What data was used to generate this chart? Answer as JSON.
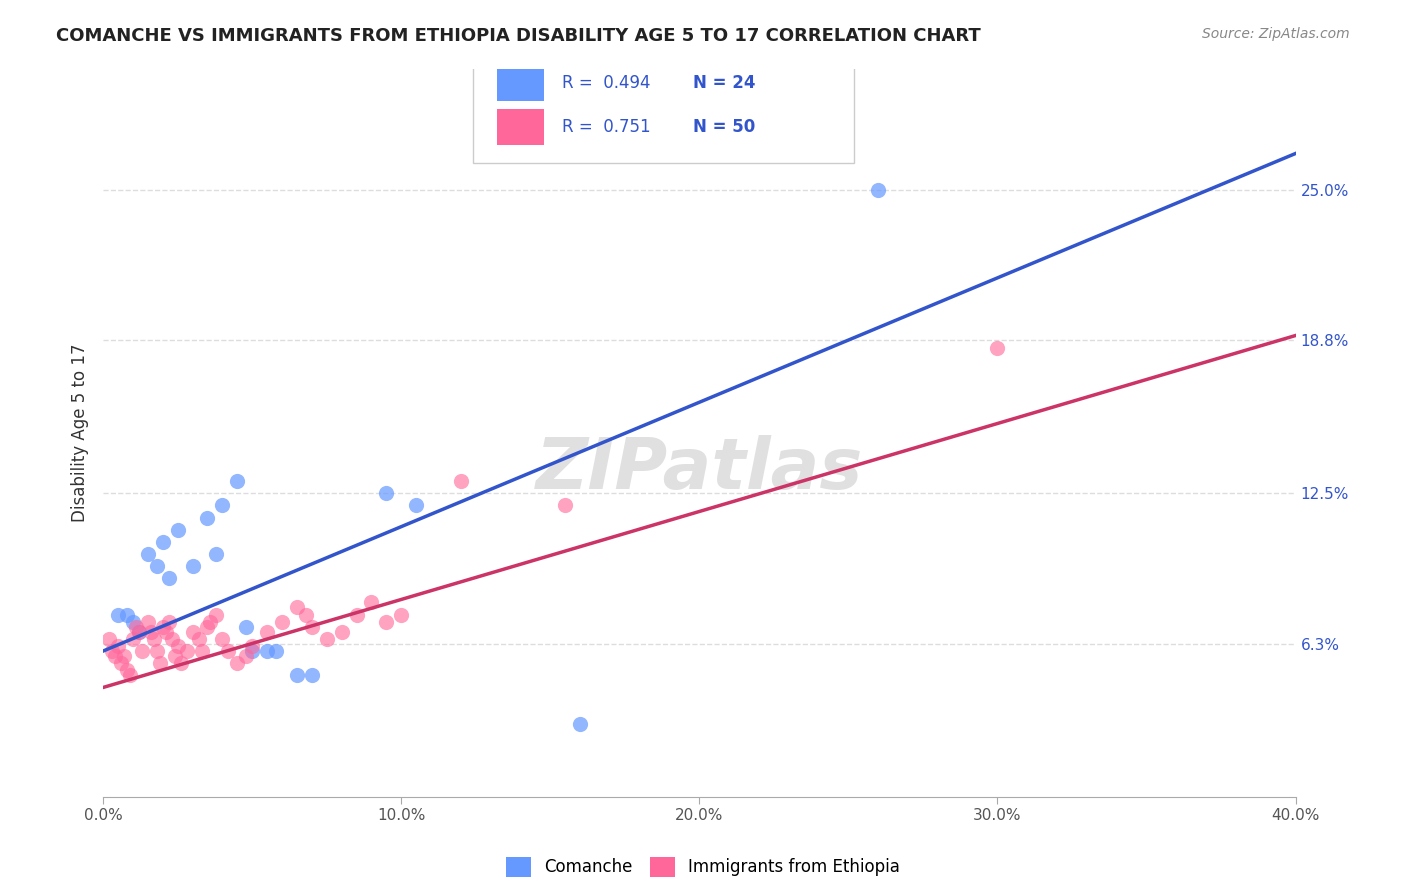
{
  "title": "COMANCHE VS IMMIGRANTS FROM ETHIOPIA DISABILITY AGE 5 TO 17 CORRELATION CHART",
  "source": "Source: ZipAtlas.com",
  "xlabel_label": "",
  "ylabel_label": "Disability Age 5 to 17",
  "x_min": 0.0,
  "x_max": 0.4,
  "y_min": 0.0,
  "y_max": 0.3,
  "x_ticks": [
    0.0,
    0.1,
    0.2,
    0.3,
    0.4
  ],
  "x_tick_labels": [
    "0.0%",
    "10.0%",
    "20.0%",
    "30.0%",
    "40.0%"
  ],
  "y_tick_labels_right": [
    "6.3%",
    "12.5%",
    "18.8%",
    "25.0%"
  ],
  "y_tick_vals_right": [
    0.063,
    0.125,
    0.188,
    0.25
  ],
  "grid_color": "#dddddd",
  "watermark": "ZIPatlas",
  "legend_R1": "0.494",
  "legend_N1": "24",
  "legend_R2": "0.751",
  "legend_N2": "50",
  "blue_color": "#6699ff",
  "pink_color": "#ff6699",
  "blue_line_color": "#3355cc",
  "pink_line_color": "#cc3366",
  "blue_scatter": [
    [
      0.005,
      0.075
    ],
    [
      0.008,
      0.075
    ],
    [
      0.01,
      0.072
    ],
    [
      0.012,
      0.068
    ],
    [
      0.015,
      0.1
    ],
    [
      0.018,
      0.095
    ],
    [
      0.02,
      0.105
    ],
    [
      0.022,
      0.09
    ],
    [
      0.025,
      0.11
    ],
    [
      0.03,
      0.095
    ],
    [
      0.035,
      0.115
    ],
    [
      0.038,
      0.1
    ],
    [
      0.04,
      0.12
    ],
    [
      0.045,
      0.13
    ],
    [
      0.048,
      0.07
    ],
    [
      0.05,
      0.06
    ],
    [
      0.055,
      0.06
    ],
    [
      0.058,
      0.06
    ],
    [
      0.065,
      0.05
    ],
    [
      0.07,
      0.05
    ],
    [
      0.095,
      0.125
    ],
    [
      0.105,
      0.12
    ],
    [
      0.16,
      0.03
    ],
    [
      0.26,
      0.25
    ]
  ],
  "pink_scatter": [
    [
      0.002,
      0.065
    ],
    [
      0.003,
      0.06
    ],
    [
      0.004,
      0.058
    ],
    [
      0.005,
      0.062
    ],
    [
      0.006,
      0.055
    ],
    [
      0.007,
      0.058
    ],
    [
      0.008,
      0.052
    ],
    [
      0.009,
      0.05
    ],
    [
      0.01,
      0.065
    ],
    [
      0.011,
      0.07
    ],
    [
      0.012,
      0.068
    ],
    [
      0.013,
      0.06
    ],
    [
      0.015,
      0.072
    ],
    [
      0.016,
      0.068
    ],
    [
      0.017,
      0.065
    ],
    [
      0.018,
      0.06
    ],
    [
      0.019,
      0.055
    ],
    [
      0.02,
      0.07
    ],
    [
      0.021,
      0.068
    ],
    [
      0.022,
      0.072
    ],
    [
      0.023,
      0.065
    ],
    [
      0.024,
      0.058
    ],
    [
      0.025,
      0.062
    ],
    [
      0.026,
      0.055
    ],
    [
      0.028,
      0.06
    ],
    [
      0.03,
      0.068
    ],
    [
      0.032,
      0.065
    ],
    [
      0.033,
      0.06
    ],
    [
      0.035,
      0.07
    ],
    [
      0.036,
      0.072
    ],
    [
      0.038,
      0.075
    ],
    [
      0.04,
      0.065
    ],
    [
      0.042,
      0.06
    ],
    [
      0.045,
      0.055
    ],
    [
      0.048,
      0.058
    ],
    [
      0.05,
      0.062
    ],
    [
      0.055,
      0.068
    ],
    [
      0.06,
      0.072
    ],
    [
      0.065,
      0.078
    ],
    [
      0.068,
      0.075
    ],
    [
      0.07,
      0.07
    ],
    [
      0.075,
      0.065
    ],
    [
      0.08,
      0.068
    ],
    [
      0.085,
      0.075
    ],
    [
      0.09,
      0.08
    ],
    [
      0.095,
      0.072
    ],
    [
      0.1,
      0.075
    ],
    [
      0.12,
      0.13
    ],
    [
      0.3,
      0.185
    ],
    [
      0.155,
      0.12
    ]
  ],
  "blue_trendline": [
    [
      0.0,
      0.06
    ],
    [
      0.4,
      0.265
    ]
  ],
  "pink_trendline": [
    [
      0.0,
      0.045
    ],
    [
      0.4,
      0.19
    ]
  ]
}
